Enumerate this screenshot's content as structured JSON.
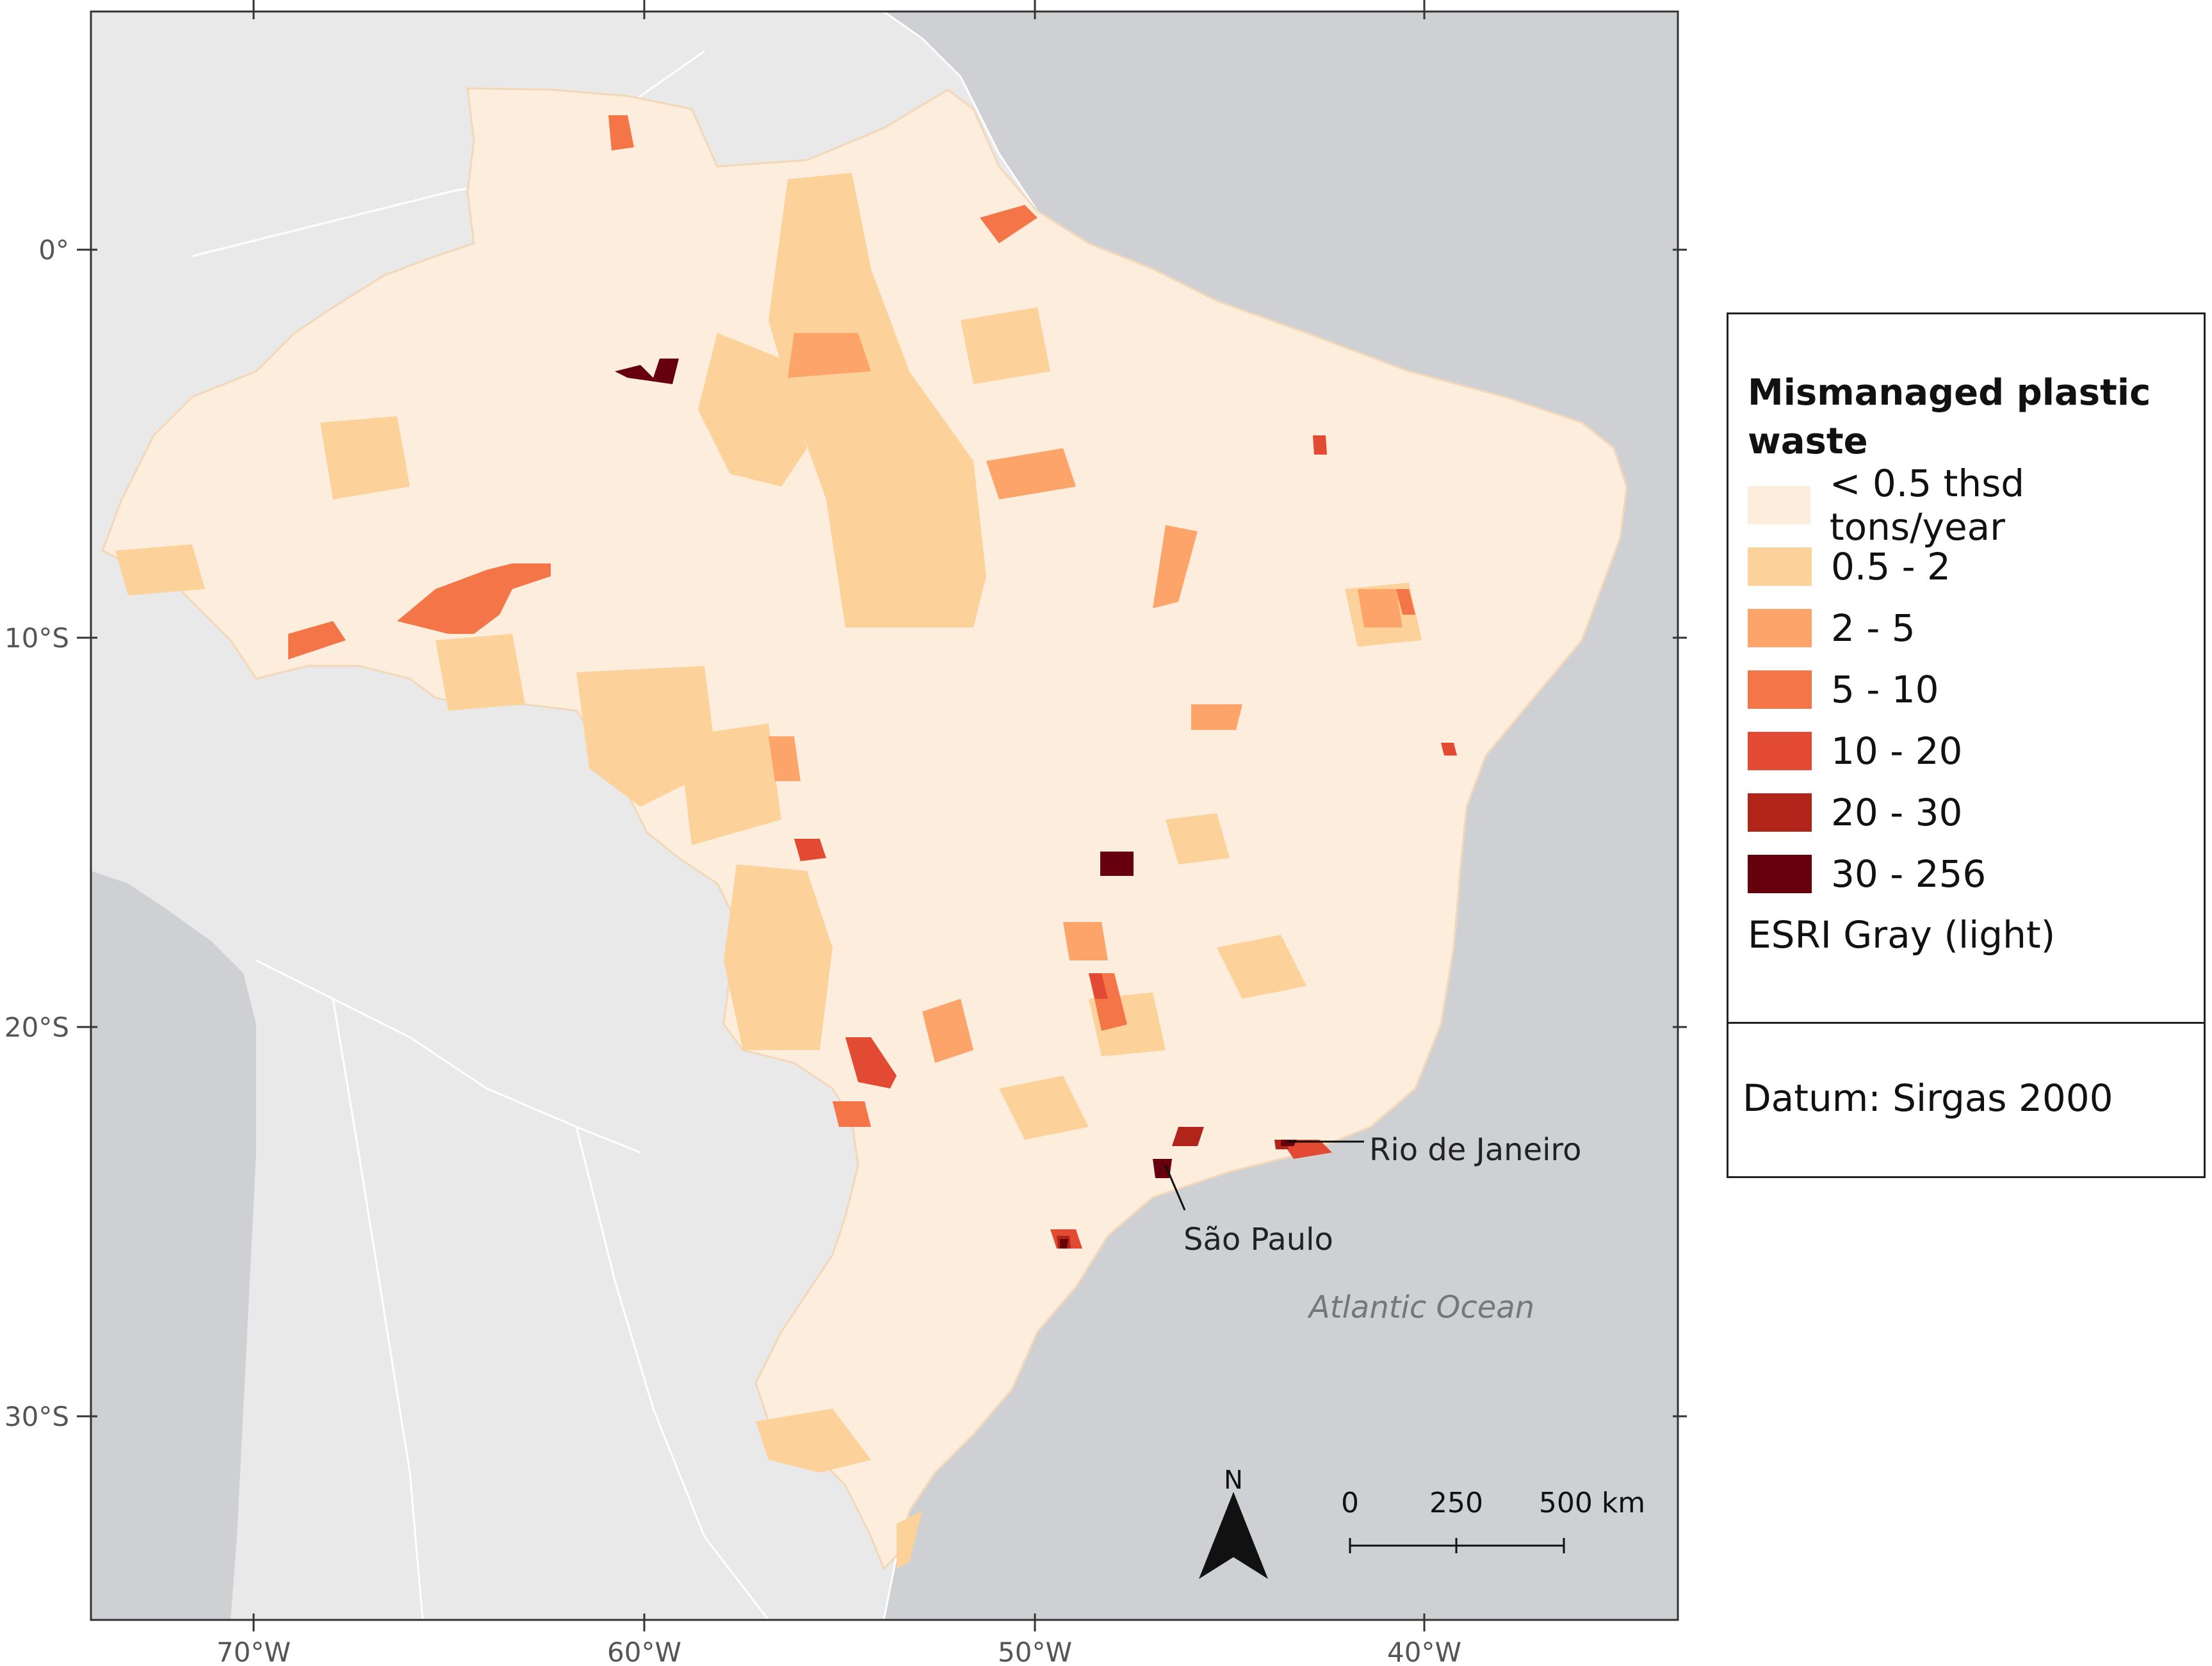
{
  "map": {
    "axis_labels": {
      "longitude": [
        "70°W",
        "60°W",
        "50°W",
        "40°W"
      ],
      "latitude": [
        "0°",
        "10°S",
        "20°S",
        "30°S"
      ]
    },
    "annotations": {
      "rio": "Rio de Janeiro",
      "sao_paulo": "São Paulo",
      "ocean": "Atlantic Ocean"
    },
    "north_arrow": "N",
    "scale_bar": {
      "labels": [
        "0",
        "250",
        "500 km"
      ]
    },
    "colors": {
      "ocean": "#cfd0d4",
      "land": "#e9e9e9",
      "border": "#ffffff"
    }
  },
  "legend": {
    "title": "Mismanaged plastic\n waste",
    "items": [
      {
        "label": "< 0.5 thsd tons/year",
        "color": "#fdeddc"
      },
      {
        "label": "0.5 - 2",
        "color": "#fdd29a"
      },
      {
        "label": "2 - 5",
        "color": "#fca46a"
      },
      {
        "label": "5 - 10",
        "color": "#f47648"
      },
      {
        "label": "10 - 20",
        "color": "#e24a33"
      },
      {
        "label": "20 - 30",
        "color": "#b0241a"
      },
      {
        "label": "30 - 256",
        "color": "#67000d"
      }
    ],
    "basemap": "ESRI Gray (light)",
    "datum": "Datum: Sirgas 2000"
  }
}
